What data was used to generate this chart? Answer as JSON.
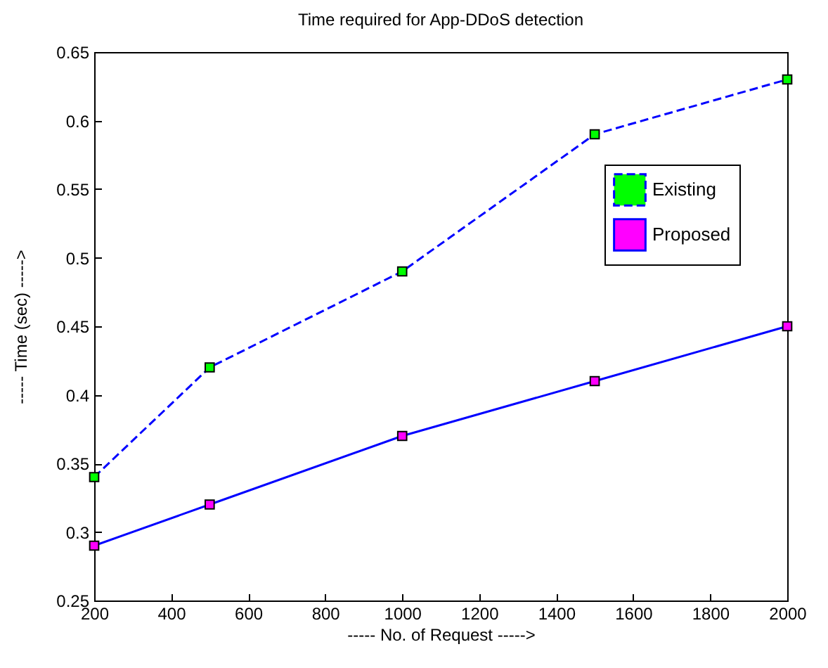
{
  "chart_data": {
    "type": "line",
    "title": "Time required for App-DDoS detection",
    "xlabel": "-----     No. of Request     ----->",
    "ylabel": "-----     Time (sec)     ----->",
    "x": [
      200,
      500,
      1000,
      1500,
      2000
    ],
    "series": [
      {
        "name": "Existing",
        "color": "#0000ff",
        "line_style": "dashed",
        "values": [
          0.34,
          0.42,
          0.49,
          0.59,
          0.63
        ]
      },
      {
        "name": "Proposed",
        "color": "#0000ff",
        "line_style": "solid",
        "values": [
          0.29,
          0.32,
          0.37,
          0.41,
          0.45
        ]
      }
    ],
    "xlim": [
      200,
      2000
    ],
    "xticks": [
      200,
      400,
      600,
      800,
      1000,
      1200,
      1400,
      1600,
      1800,
      2000
    ],
    "ylim": [
      0.25,
      0.65
    ],
    "yticks": [
      0.25,
      0.3,
      0.35,
      0.4,
      0.45,
      0.5,
      0.55,
      0.6,
      0.65
    ],
    "marker": "square",
    "legend": "top right",
    "grid": false
  }
}
